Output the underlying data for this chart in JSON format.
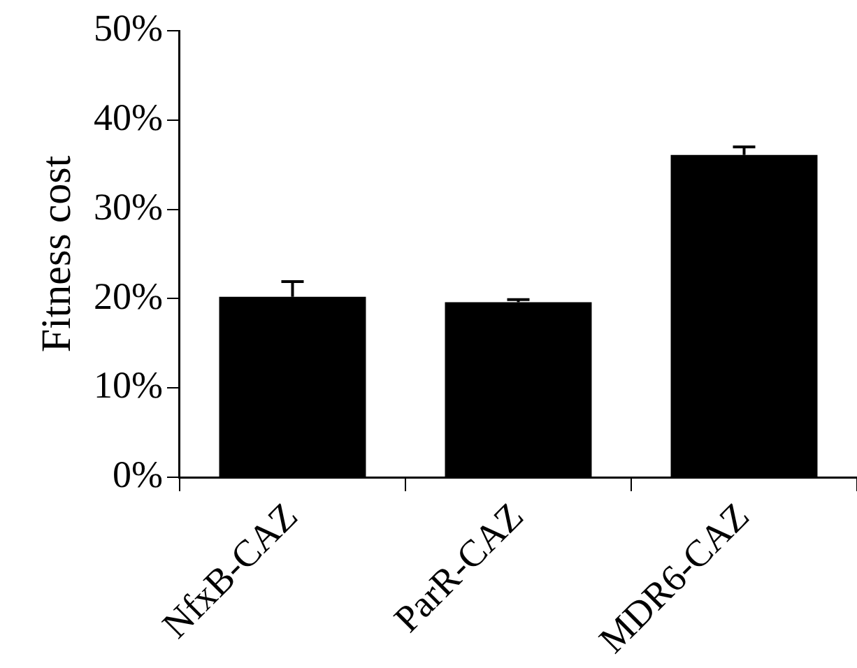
{
  "chart_data": {
    "type": "bar",
    "ylabel": "Fitness cost",
    "categories": [
      "NfxB-CAZ",
      "ParR-CAZ",
      "MDR6-CAZ"
    ],
    "values": [
      20.2,
      19.6,
      36.1
    ],
    "color": "#000000",
    "errors": [
      [
        20.2,
        21.9
      ],
      [
        19.6,
        19.9
      ],
      [
        36.1,
        37.0
      ]
    ],
    "ylim": [
      0,
      50
    ],
    "yticks": [
      {
        "value": 0,
        "label": "0%"
      },
      {
        "value": 10,
        "label": "10%"
      },
      {
        "value": 20,
        "label": "20%"
      },
      {
        "value": 30,
        "label": "30%"
      },
      {
        "value": 40,
        "label": "40%"
      },
      {
        "value": 50,
        "label": "50%"
      }
    ],
    "grid": false,
    "legend": false
  }
}
